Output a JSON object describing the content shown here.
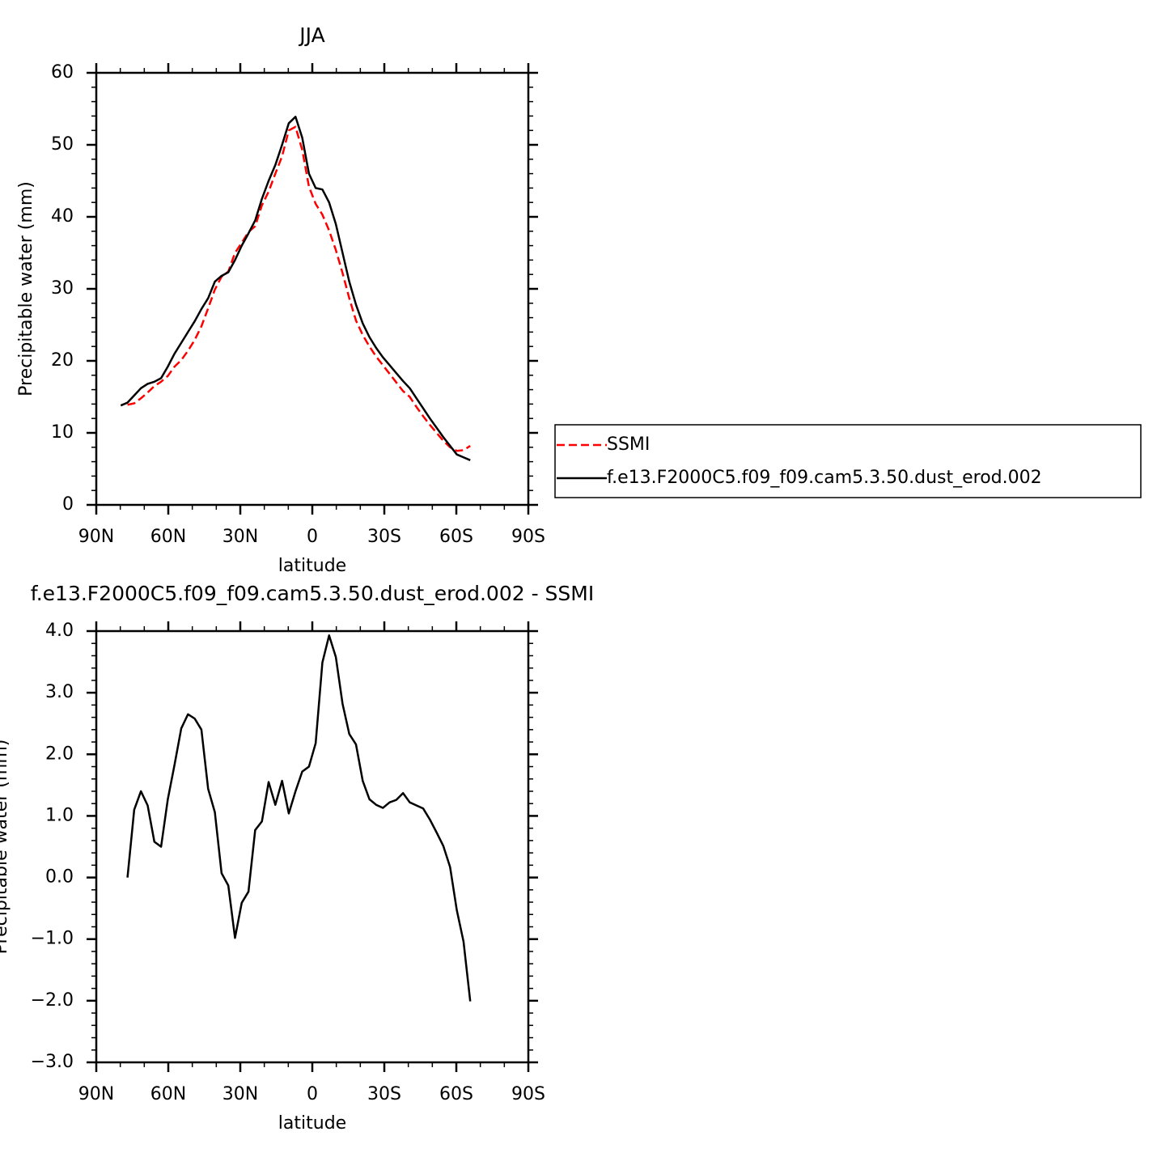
{
  "chart_data": [
    {
      "type": "line",
      "title": "JJA",
      "xlabel": "latitude",
      "ylabel": "Precipitable water (mm)",
      "x": [
        79.8,
        77.0,
        74.2,
        71.4,
        68.6,
        65.8,
        63.0,
        60.2,
        57.4,
        54.6,
        51.8,
        49.0,
        46.2,
        43.4,
        40.6,
        37.8,
        35.0,
        32.2,
        29.4,
        26.6,
        23.8,
        21.0,
        18.2,
        15.4,
        12.6,
        9.8,
        7.0,
        4.2,
        1.4,
        -1.4,
        -4.2,
        -7.0,
        -9.8,
        -12.6,
        -15.4,
        -18.2,
        -21.0,
        -23.8,
        -26.6,
        -29.4,
        -32.2,
        -35.0,
        -37.8,
        -40.6,
        -43.4,
        -46.2,
        -49.0,
        -51.8,
        -54.6,
        -57.4,
        -60.2,
        -63.0,
        -65.8
      ],
      "series": [
        {
          "name": "SSMI",
          "color": "#ff0000",
          "dashed": true,
          "values": [
            null,
            13.9,
            14.1,
            14.8,
            15.6,
            16.5,
            17.1,
            17.9,
            19.2,
            20.1,
            21.4,
            22.9,
            24.8,
            27.3,
            29.9,
            31.7,
            32.4,
            35.0,
            36.4,
            37.9,
            38.7,
            41.6,
            43.5,
            46.0,
            48.4,
            52.0,
            52.5,
            49.3,
            44.2,
            41.8,
            40.3,
            38.1,
            35.4,
            32.2,
            28.7,
            25.6,
            23.6,
            22.0,
            20.6,
            19.4,
            18.2,
            17.0,
            15.8,
            15.0,
            13.6,
            12.3,
            11.1,
            10.0,
            8.9,
            8.0,
            7.5,
            7.6,
            8.2
          ]
        },
        {
          "name": "f.e13.F2000C5.f09_f09.cam5.3.50.dust_erod.002",
          "color": "#000000",
          "dashed": false,
          "values": [
            13.8,
            14.2,
            15.2,
            16.2,
            16.8,
            17.1,
            17.6,
            19.2,
            21.0,
            22.5,
            24.0,
            25.5,
            27.2,
            28.7,
            31.0,
            31.8,
            32.3,
            34.0,
            36.0,
            37.7,
            39.5,
            42.5,
            45.0,
            47.2,
            50.0,
            53.0,
            53.9,
            51.0,
            46.0,
            44.0,
            43.8,
            42.0,
            39.0,
            35.0,
            31.0,
            27.8,
            25.2,
            23.3,
            21.8,
            20.5,
            19.4,
            18.3,
            17.2,
            16.2,
            14.8,
            13.4,
            12.0,
            10.7,
            9.4,
            8.2,
            7.0,
            6.6,
            6.2
          ]
        }
      ],
      "xlim": [
        90,
        -90
      ],
      "xticks": [
        {
          "value": 90,
          "label": "90N"
        },
        {
          "value": 60,
          "label": "60N"
        },
        {
          "value": 30,
          "label": "30N"
        },
        0,
        {
          "value": -30,
          "label": "30S"
        },
        {
          "value": -60,
          "label": "60S"
        },
        {
          "value": -90,
          "label": "90S"
        }
      ],
      "ylim": [
        0,
        60
      ],
      "yticks": [
        0,
        10,
        20,
        30,
        40,
        50,
        60
      ],
      "legend": "outside-right"
    },
    {
      "type": "line",
      "title": "f.e13.F2000C5.f09_f09.cam5.3.50.dust_erod.002 - SSMI",
      "xlabel": "latitude",
      "ylabel": "Precipitable water (mm)",
      "x": [
        77.0,
        74.2,
        71.4,
        68.6,
        65.8,
        63.0,
        60.2,
        57.4,
        54.6,
        51.8,
        49.0,
        46.2,
        43.4,
        40.6,
        37.8,
        35.0,
        32.2,
        29.4,
        26.6,
        23.8,
        21.0,
        18.2,
        15.4,
        12.6,
        9.8,
        7.0,
        4.2,
        1.4,
        -1.4,
        -4.2,
        -7.0,
        -9.8,
        -12.6,
        -15.4,
        -18.2,
        -21.0,
        -23.8,
        -26.6,
        -29.4,
        -32.2,
        -35.0,
        -37.8,
        -40.6,
        -43.4,
        -46.2,
        -49.0,
        -51.8,
        -54.6,
        -57.4,
        -60.2,
        -63.0,
        -65.8
      ],
      "values": [
        0.0,
        1.1,
        1.4,
        1.17,
        0.58,
        0.5,
        1.27,
        1.83,
        2.42,
        2.65,
        2.58,
        2.4,
        1.44,
        1.06,
        0.07,
        -0.13,
        -0.98,
        -0.41,
        -0.23,
        0.77,
        0.91,
        1.55,
        1.18,
        1.57,
        1.04,
        1.4,
        1.72,
        1.8,
        2.18,
        3.49,
        3.93,
        3.58,
        2.82,
        2.33,
        2.16,
        1.57,
        1.27,
        1.18,
        1.13,
        1.22,
        1.26,
        1.37,
        1.22,
        1.17,
        1.12,
        0.94,
        0.73,
        0.51,
        0.17,
        -0.53,
        -1.04,
        -2.01
      ],
      "color": "#000000",
      "xlim": [
        90,
        -90
      ],
      "xticks": [
        {
          "value": 90,
          "label": "90N"
        },
        {
          "value": 60,
          "label": "60N"
        },
        {
          "value": 30,
          "label": "30N"
        },
        0,
        {
          "value": -30,
          "label": "30S"
        },
        {
          "value": -60,
          "label": "60S"
        },
        {
          "value": -90,
          "label": "90S"
        }
      ],
      "ylim": [
        -3,
        4
      ],
      "yticks": [
        {
          "value": -3,
          "label": "−3.0"
        },
        {
          "value": -2,
          "label": "−2.0"
        },
        {
          "value": -1,
          "label": "−1.0"
        },
        {
          "value": 0,
          "label": "0.0"
        },
        {
          "value": 1,
          "label": "1.0"
        },
        {
          "value": 2,
          "label": "2.0"
        },
        {
          "value": 3,
          "label": "3.0"
        },
        {
          "value": 4,
          "label": "4.0"
        }
      ]
    }
  ]
}
